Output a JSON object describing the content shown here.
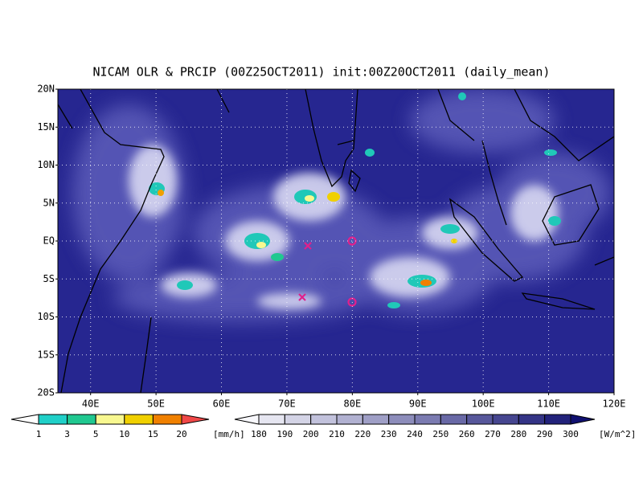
{
  "title": "NICAM OLR & PRCIP (00Z25OCT2011) init:00Z20OCT2011 (daily_mean)",
  "map": {
    "lat_labels": [
      "20N",
      "15N",
      "10N",
      "5N",
      "EQ",
      "5S",
      "10S",
      "15S",
      "20S"
    ],
    "lon_labels": [
      "40E",
      "50E",
      "60E",
      "70E",
      "80E",
      "90E",
      "100E",
      "110E",
      "120E"
    ]
  },
  "precip_colorbar": {
    "labels": [
      "1",
      "3",
      "5",
      "10",
      "15",
      "20"
    ],
    "unit": "[mm/h]"
  },
  "olr_colorbar": {
    "labels": [
      "180",
      "190",
      "200",
      "210",
      "220",
      "230",
      "240",
      "250",
      "260",
      "270",
      "280",
      "290",
      "300"
    ],
    "unit": "[W/m^2]"
  }
}
